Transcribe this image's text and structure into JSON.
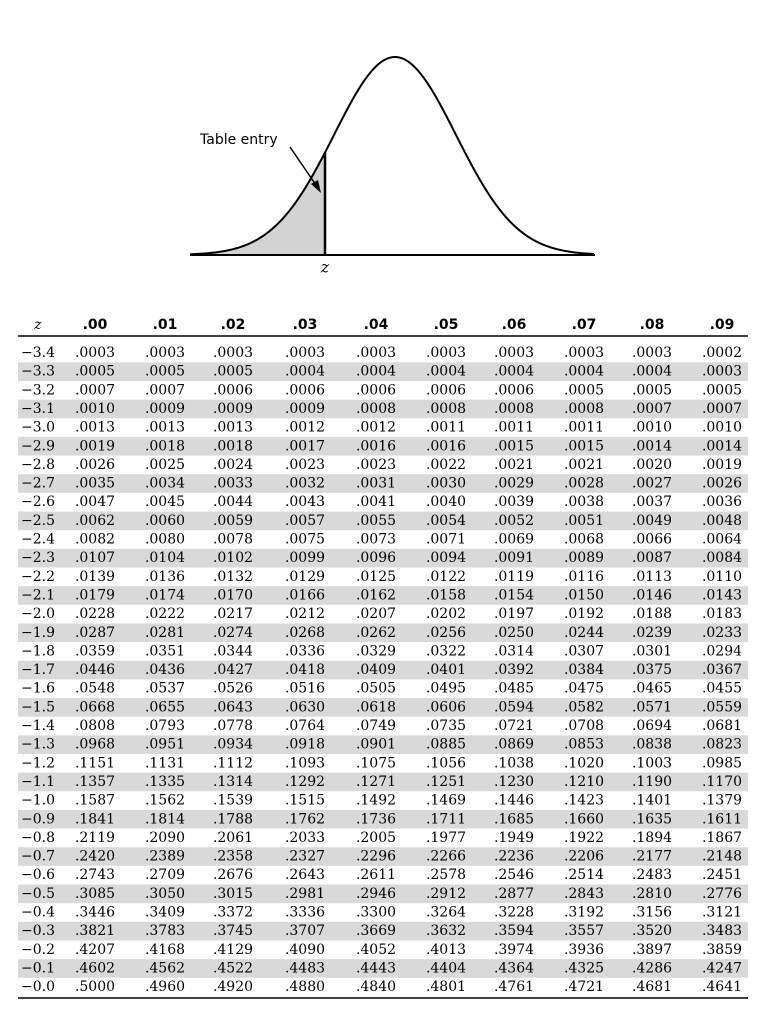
{
  "figure": {
    "label": "Table entry",
    "z_label": "z"
  },
  "table": {
    "header": [
      "z",
      ".00",
      ".01",
      ".02",
      ".03",
      ".04",
      ".05",
      ".06",
      ".07",
      ".08",
      ".09"
    ],
    "rows": [
      [
        "−3.4",
        ".0003",
        ".0003",
        ".0003",
        ".0003",
        ".0003",
        ".0003",
        ".0003",
        ".0003",
        ".0003",
        ".0002"
      ],
      [
        "−3.3",
        ".0005",
        ".0005",
        ".0005",
        ".0004",
        ".0004",
        ".0004",
        ".0004",
        ".0004",
        ".0004",
        ".0003"
      ],
      [
        "−3.2",
        ".0007",
        ".0007",
        ".0006",
        ".0006",
        ".0006",
        ".0006",
        ".0006",
        ".0005",
        ".0005",
        ".0005"
      ],
      [
        "−3.1",
        ".0010",
        ".0009",
        ".0009",
        ".0009",
        ".0008",
        ".0008",
        ".0008",
        ".0008",
        ".0007",
        ".0007"
      ],
      [
        "−3.0",
        ".0013",
        ".0013",
        ".0013",
        ".0012",
        ".0012",
        ".0011",
        ".0011",
        ".0011",
        ".0010",
        ".0010"
      ],
      [
        "−2.9",
        ".0019",
        ".0018",
        ".0018",
        ".0017",
        ".0016",
        ".0016",
        ".0015",
        ".0015",
        ".0014",
        ".0014"
      ],
      [
        "−2.8",
        ".0026",
        ".0025",
        ".0024",
        ".0023",
        ".0023",
        ".0022",
        ".0021",
        ".0021",
        ".0020",
        ".0019"
      ],
      [
        "−2.7",
        ".0035",
        ".0034",
        ".0033",
        ".0032",
        ".0031",
        ".0030",
        ".0029",
        ".0028",
        ".0027",
        ".0026"
      ],
      [
        "−2.6",
        ".0047",
        ".0045",
        ".0044",
        ".0043",
        ".0041",
        ".0040",
        ".0039",
        ".0038",
        ".0037",
        ".0036"
      ],
      [
        "−2.5",
        ".0062",
        ".0060",
        ".0059",
        ".0057",
        ".0055",
        ".0054",
        ".0052",
        ".0051",
        ".0049",
        ".0048"
      ],
      [
        "−2.4",
        ".0082",
        ".0080",
        ".0078",
        ".0075",
        ".0073",
        ".0071",
        ".0069",
        ".0068",
        ".0066",
        ".0064"
      ],
      [
        "−2.3",
        ".0107",
        ".0104",
        ".0102",
        ".0099",
        ".0096",
        ".0094",
        ".0091",
        ".0089",
        ".0087",
        ".0084"
      ],
      [
        "−2.2",
        ".0139",
        ".0136",
        ".0132",
        ".0129",
        ".0125",
        ".0122",
        ".0119",
        ".0116",
        ".0113",
        ".0110"
      ],
      [
        "−2.1",
        ".0179",
        ".0174",
        ".0170",
        ".0166",
        ".0162",
        ".0158",
        ".0154",
        ".0150",
        ".0146",
        ".0143"
      ],
      [
        "−2.0",
        ".0228",
        ".0222",
        ".0217",
        ".0212",
        ".0207",
        ".0202",
        ".0197",
        ".0192",
        ".0188",
        ".0183"
      ],
      [
        "−1.9",
        ".0287",
        ".0281",
        ".0274",
        ".0268",
        ".0262",
        ".0256",
        ".0250",
        ".0244",
        ".0239",
        ".0233"
      ],
      [
        "−1.8",
        ".0359",
        ".0351",
        ".0344",
        ".0336",
        ".0329",
        ".0322",
        ".0314",
        ".0307",
        ".0301",
        ".0294"
      ],
      [
        "−1.7",
        ".0446",
        ".0436",
        ".0427",
        ".0418",
        ".0409",
        ".0401",
        ".0392",
        ".0384",
        ".0375",
        ".0367"
      ],
      [
        "−1.6",
        ".0548",
        ".0537",
        ".0526",
        ".0516",
        ".0505",
        ".0495",
        ".0485",
        ".0475",
        ".0465",
        ".0455"
      ],
      [
        "−1.5",
        ".0668",
        ".0655",
        ".0643",
        ".0630",
        ".0618",
        ".0606",
        ".0594",
        ".0582",
        ".0571",
        ".0559"
      ],
      [
        "−1.4",
        ".0808",
        ".0793",
        ".0778",
        ".0764",
        ".0749",
        ".0735",
        ".0721",
        ".0708",
        ".0694",
        ".0681"
      ],
      [
        "−1.3",
        ".0968",
        ".0951",
        ".0934",
        ".0918",
        ".0901",
        ".0885",
        ".0869",
        ".0853",
        ".0838",
        ".0823"
      ],
      [
        "−1.2",
        ".1151",
        ".1131",
        ".1112",
        ".1093",
        ".1075",
        ".1056",
        ".1038",
        ".1020",
        ".1003",
        ".0985"
      ],
      [
        "−1.1",
        ".1357",
        ".1335",
        ".1314",
        ".1292",
        ".1271",
        ".1251",
        ".1230",
        ".1210",
        ".1190",
        ".1170"
      ],
      [
        "−1.0",
        ".1587",
        ".1562",
        ".1539",
        ".1515",
        ".1492",
        ".1469",
        ".1446",
        ".1423",
        ".1401",
        ".1379"
      ],
      [
        "−0.9",
        ".1841",
        ".1814",
        ".1788",
        ".1762",
        ".1736",
        ".1711",
        ".1685",
        ".1660",
        ".1635",
        ".1611"
      ],
      [
        "−0.8",
        ".2119",
        ".2090",
        ".2061",
        ".2033",
        ".2005",
        ".1977",
        ".1949",
        ".1922",
        ".1894",
        ".1867"
      ],
      [
        "−0.7",
        ".2420",
        ".2389",
        ".2358",
        ".2327",
        ".2296",
        ".2266",
        ".2236",
        ".2206",
        ".2177",
        ".2148"
      ],
      [
        "−0.6",
        ".2743",
        ".2709",
        ".2676",
        ".2643",
        ".2611",
        ".2578",
        ".2546",
        ".2514",
        ".2483",
        ".2451"
      ],
      [
        "−0.5",
        ".3085",
        ".3050",
        ".3015",
        ".2981",
        ".2946",
        ".2912",
        ".2877",
        ".2843",
        ".2810",
        ".2776"
      ],
      [
        "−0.4",
        ".3446",
        ".3409",
        ".3372",
        ".3336",
        ".3300",
        ".3264",
        ".3228",
        ".3192",
        ".3156",
        ".3121"
      ],
      [
        "−0.3",
        ".3821",
        ".3783",
        ".3745",
        ".3707",
        ".3669",
        ".3632",
        ".3594",
        ".3557",
        ".3520",
        ".3483"
      ],
      [
        "−0.2",
        ".4207",
        ".4168",
        ".4129",
        ".4090",
        ".4052",
        ".4013",
        ".3974",
        ".3936",
        ".3897",
        ".3859"
      ],
      [
        "−0.1",
        ".4602",
        ".4562",
        ".4522",
        ".4483",
        ".4443",
        ".4404",
        ".4364",
        ".4325",
        ".4286",
        ".4247"
      ],
      [
        "−0.0",
        ".5000",
        ".4960",
        ".4920",
        ".4880",
        ".4840",
        ".4801",
        ".4761",
        ".4721",
        ".4681",
        ".4641"
      ]
    ]
  }
}
